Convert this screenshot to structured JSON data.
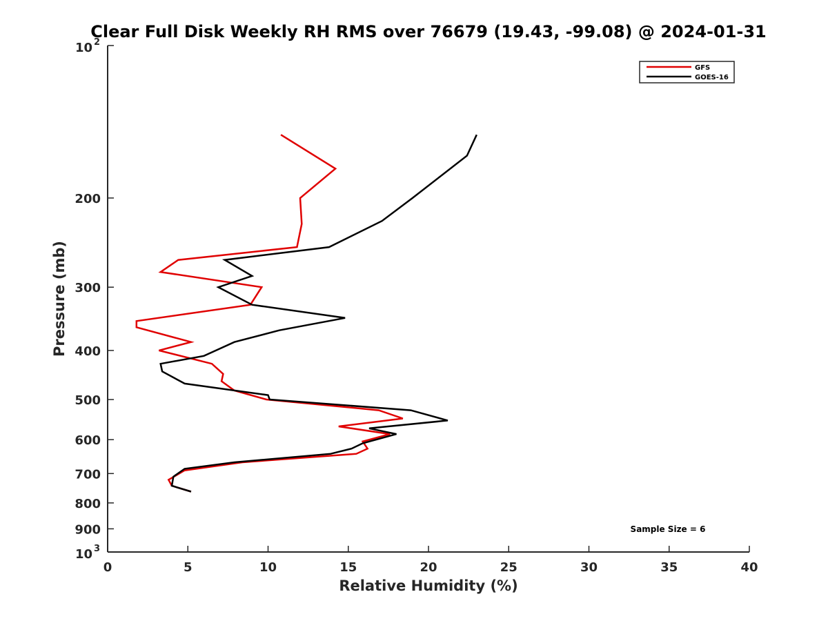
{
  "chart_data": {
    "type": "line",
    "title": "Clear Full Disk Weekly RH RMS over 76679 (19.43, -99.08) @ 2024-01-31",
    "xlabel": "Relative Humidity (%)",
    "ylabel": "Pressure (mb)",
    "xlim": [
      0,
      40
    ],
    "ylim": [
      100,
      1000
    ],
    "y_scale": "log",
    "y_reversed": true,
    "x_ticks": [
      0,
      5,
      10,
      15,
      20,
      25,
      30,
      35,
      40
    ],
    "x_tick_labels": [
      "0",
      "5",
      "10",
      "15",
      "20",
      "25",
      "30",
      "35",
      "40"
    ],
    "y_ticks": [
      200,
      300,
      400,
      500,
      600,
      700,
      800,
      900
    ],
    "y_tick_labels": [
      "200",
      "300",
      "400",
      "500",
      "600",
      "700",
      "800",
      "900"
    ],
    "y_decade_ticks": [
      100,
      1000
    ],
    "y_decade_labels": [
      {
        "base": "10",
        "exp": "2"
      },
      {
        "base": "10",
        "exp": "3"
      }
    ],
    "grid": false,
    "legend_position": "top-right",
    "annotation": "Sample Size = 6",
    "series": [
      {
        "name": "GFS",
        "color": "#e00000",
        "x": [
          10.8,
          14.2,
          12.0,
          12.1,
          11.8,
          4.4,
          3.3,
          9.6,
          8.9,
          1.8,
          1.8,
          5.2,
          3.2,
          6.5,
          7.2,
          7.1,
          7.9,
          9.9,
          16.9,
          18.4,
          14.4,
          17.6,
          15.9,
          16.2,
          15.5,
          8.4,
          4.8,
          3.8,
          4.0,
          5.2
        ],
        "y": [
          150,
          175,
          200,
          225,
          250,
          265,
          280,
          300,
          325,
          350,
          360,
          385,
          400,
          425,
          445,
          460,
          480,
          500,
          525,
          545,
          565,
          585,
          605,
          625,
          640,
          665,
          690,
          720,
          740,
          760
        ]
      },
      {
        "name": "GOES-16",
        "color": "#000000",
        "x": [
          23.0,
          22.4,
          19.0,
          17.1,
          13.8,
          7.3,
          9.0,
          6.9,
          9.0,
          14.8,
          10.7,
          7.9,
          6.0,
          3.3,
          3.4,
          4.8,
          10.0,
          10.1,
          18.9,
          21.2,
          16.3,
          18.0,
          15.9,
          15.2,
          13.9,
          7.9,
          4.8,
          4.1,
          4.0,
          5.2
        ],
        "y": [
          150,
          165,
          200,
          222,
          250,
          265,
          285,
          300,
          325,
          345,
          365,
          385,
          410,
          425,
          440,
          465,
          490,
          500,
          525,
          550,
          570,
          585,
          610,
          625,
          640,
          665,
          685,
          710,
          740,
          760
        ]
      }
    ]
  }
}
